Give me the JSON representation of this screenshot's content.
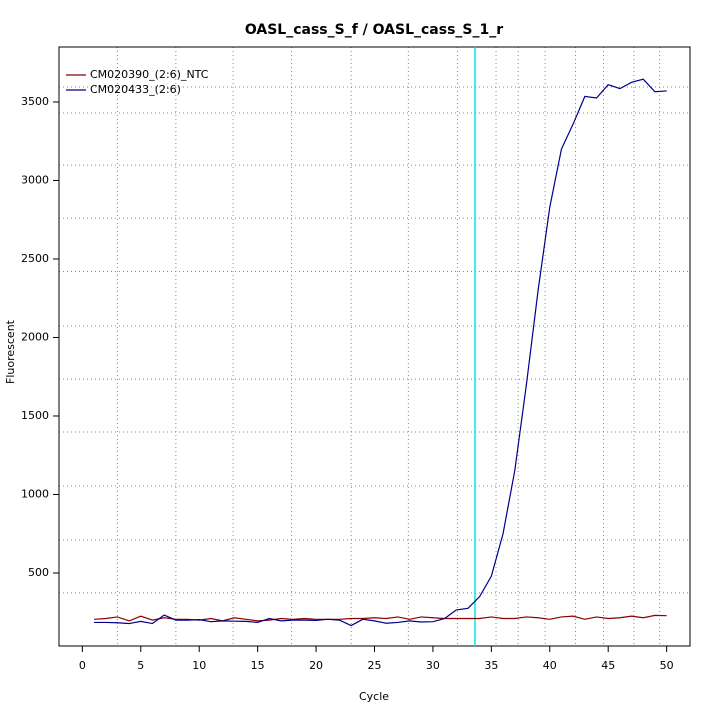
{
  "chart_data": {
    "type": "line",
    "title": "OASL_cass_S_f / OASL_cass_S_1_r",
    "xlabel": "Cycle",
    "ylabel": "Fluorescent",
    "x": [
      1,
      2,
      3,
      4,
      5,
      6,
      7,
      8,
      9,
      10,
      11,
      12,
      13,
      14,
      15,
      16,
      17,
      18,
      19,
      20,
      21,
      22,
      23,
      24,
      25,
      26,
      27,
      28,
      29,
      30,
      31,
      32,
      33,
      34,
      35,
      36,
      37,
      38,
      39,
      40,
      41,
      42,
      43,
      44,
      45,
      46,
      47,
      48,
      49,
      50
    ],
    "series": [
      {
        "name": "CM020390_(2:6)_NTC",
        "color": "#8b0000",
        "values": [
          205,
          210,
          220,
          195,
          225,
          200,
          215,
          205,
          205,
          200,
          210,
          195,
          215,
          205,
          195,
          200,
          210,
          205,
          210,
          205,
          205,
          205,
          210,
          210,
          215,
          210,
          220,
          205,
          220,
          215,
          210,
          210,
          210,
          210,
          220,
          210,
          210,
          220,
          215,
          205,
          220,
          225,
          205,
          220,
          210,
          215,
          225,
          215,
          230,
          228
        ]
      },
      {
        "name": "CM020433_(2:6)",
        "color": "#00008b",
        "values": [
          185,
          185,
          183,
          178,
          192,
          178,
          232,
          200,
          200,
          203,
          190,
          195,
          193,
          192,
          185,
          210,
          195,
          200,
          200,
          198,
          205,
          200,
          165,
          205,
          195,
          180,
          185,
          195,
          188,
          190,
          210,
          265,
          275,
          350,
          480,
          750,
          1150,
          1700,
          2300,
          2830,
          3200,
          3360,
          3535,
          3525,
          3610,
          3585,
          3625,
          3645,
          3565,
          3570
        ]
      }
    ],
    "xlim": [
      -2,
      52
    ],
    "ylim": [
      35,
      3850
    ],
    "xticks": [
      0,
      5,
      10,
      15,
      20,
      25,
      30,
      35,
      40,
      45,
      50
    ],
    "yticks": [
      500,
      1000,
      1500,
      2000,
      2500,
      3000,
      3500
    ],
    "grid_x": [
      3,
      8,
      12.9,
      17.9,
      23,
      27.9,
      32.1,
      35.4,
      37.3,
      39.6,
      42.2,
      44.6,
      47.2,
      49.4
    ],
    "grid_y": [
      373,
      710,
      1054,
      1398,
      1735,
      2073,
      2420,
      2760,
      3098,
      3430,
      3595
    ],
    "threshold_x": 33.6,
    "threshold_color": "#00e5ee",
    "legend": "top-left"
  }
}
